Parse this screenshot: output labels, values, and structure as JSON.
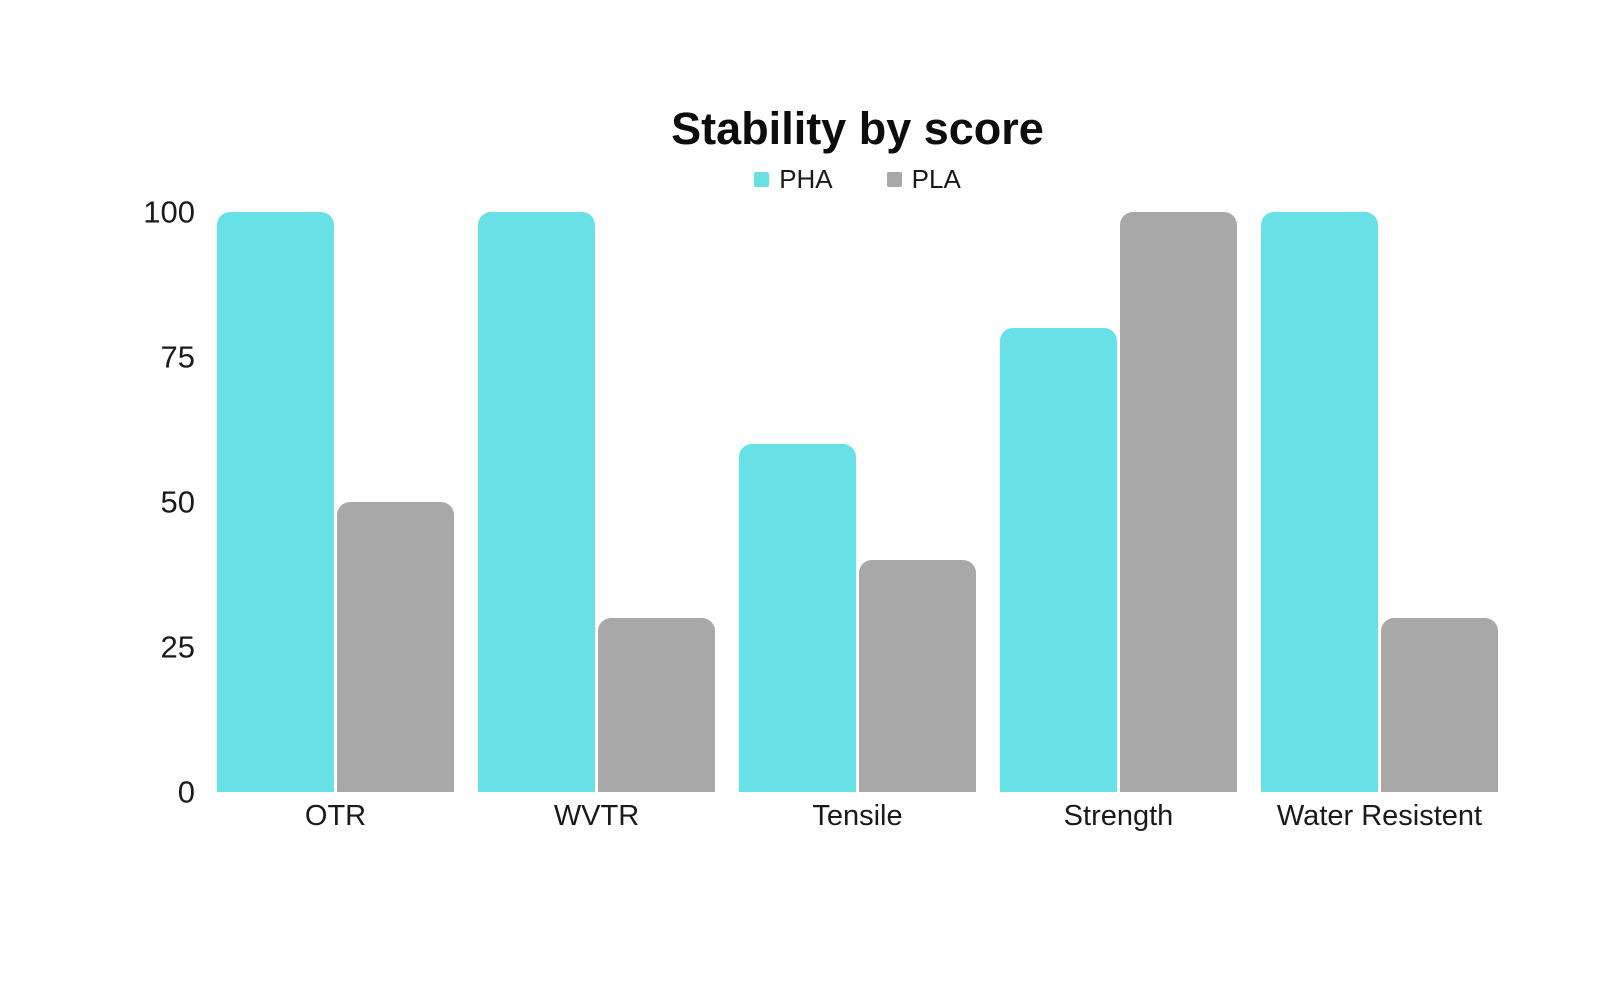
{
  "chart_data": {
    "type": "bar",
    "title": "Stability by score",
    "categories": [
      "OTR",
      "WVTR",
      "Tensile",
      "Strength",
      "Water Resistent"
    ],
    "series": [
      {
        "name": "PHA",
        "color": "#68E1E6",
        "values": [
          100,
          100,
          60,
          80,
          100
        ]
      },
      {
        "name": "PLA",
        "color": "#A8A8A8",
        "values": [
          50,
          30,
          40,
          100,
          30
        ]
      }
    ],
    "xlabel": "",
    "ylabel": "",
    "ylim": [
      0,
      100
    ],
    "yticks": [
      0,
      25,
      50,
      75,
      100
    ],
    "grid": false,
    "axis_lines": false,
    "legend_position": "top-center",
    "background_color": "#FFFFFF",
    "text_color": "#1a1a1a"
  }
}
